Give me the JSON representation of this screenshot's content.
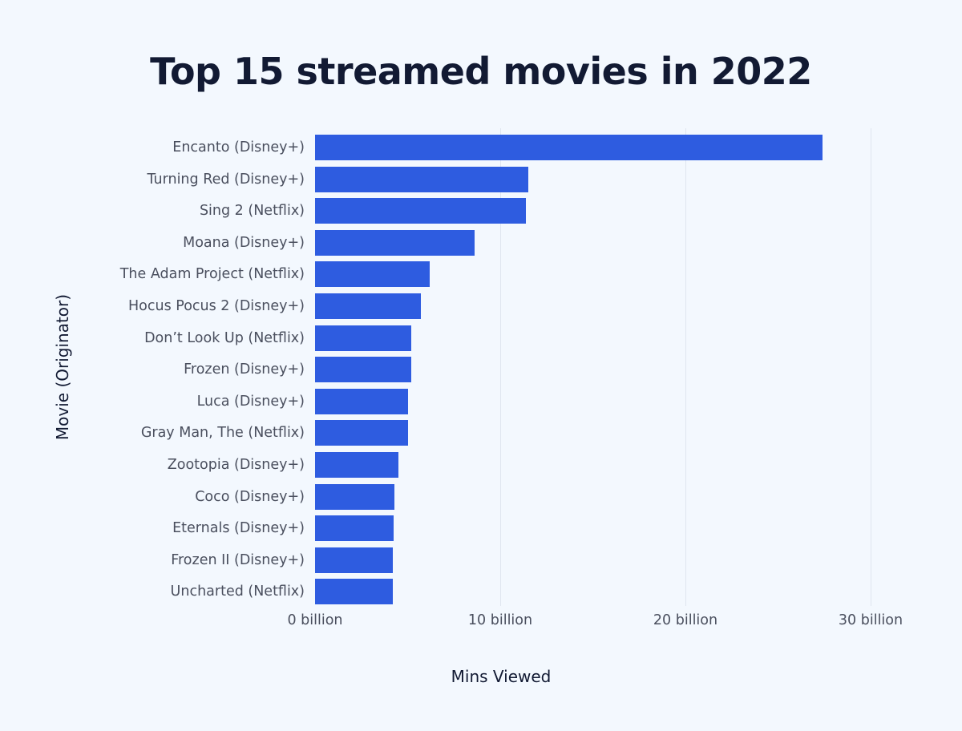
{
  "chart_data": {
    "type": "bar",
    "orientation": "horizontal",
    "title": "Top 15 streamed movies in 2022",
    "xlabel": "Mins Viewed",
    "ylabel": "Movie (Originator)",
    "xlim": [
      0,
      30
    ],
    "xticks": [
      "0 billion",
      "10 billion",
      "20 billion",
      "30 billion"
    ],
    "grid": "vertical",
    "bar_color": "#2e5ce0",
    "categories": [
      "Encanto (Disney+)",
      "Turning Red (Disney+)",
      "Sing 2 (Netflix)",
      "Moana (Disney+)",
      "The Adam Project (Netflix)",
      "Hocus Pocus 2 (Disney+)",
      "Don’t Look Up (Netflix)",
      "Frozen (Disney+)",
      "Luca (Disney+)",
      "Gray Man, The (Netflix)",
      "Zootopia (Disney+)",
      "Coco (Disney+)",
      "Eternals (Disney+)",
      "Frozen II (Disney+)",
      "Uncharted (Netflix)"
    ],
    "values": [
      27.4,
      11.5,
      11.4,
      8.6,
      6.2,
      5.7,
      5.2,
      5.2,
      5.0,
      5.0,
      4.5,
      4.3,
      4.25,
      4.2,
      4.2
    ],
    "unit": "billion minutes"
  }
}
